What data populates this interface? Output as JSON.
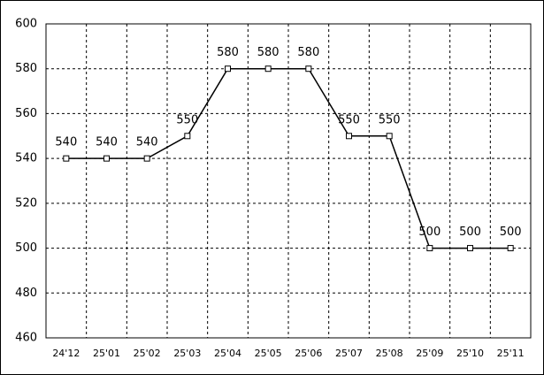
{
  "chart_data": {
    "type": "line",
    "categories": [
      "24'12",
      "25'01",
      "25'02",
      "25'03",
      "25'04",
      "25'05",
      "25'06",
      "25'07",
      "25'08",
      "25'09",
      "25'10",
      "25'11"
    ],
    "values": [
      540,
      540,
      540,
      550,
      580,
      580,
      580,
      550,
      550,
      500,
      500,
      500
    ],
    "color": "#000000",
    "ylim": [
      460,
      600
    ],
    "yticks": [
      460,
      480,
      500,
      520,
      540,
      560,
      580,
      600
    ],
    "grid": true
  }
}
